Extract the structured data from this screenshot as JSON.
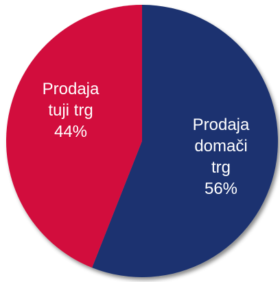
{
  "chart_data": {
    "type": "pie",
    "slices": [
      {
        "label_lines": [
          "Prodaja",
          "domači",
          "trg"
        ],
        "value": 56,
        "value_label": "56%",
        "color": "#1b336f"
      },
      {
        "label_lines": [
          "Prodaja",
          "tuji trg"
        ],
        "value": 44,
        "value_label": "44%",
        "color": "#d20f3c"
      }
    ],
    "legend": "none",
    "start": "top",
    "direction": "clockwise",
    "shadow": true
  }
}
